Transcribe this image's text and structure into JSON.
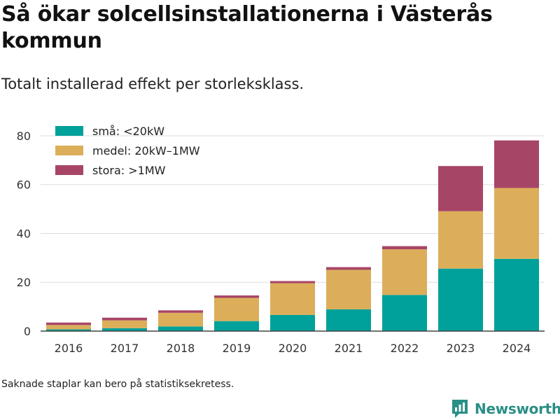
{
  "title": "Så ökar solcellsinstallationerna i Västerås kommun",
  "subtitle": "Totalt installerad effekt per storleksklass.",
  "footnote": "Saknade staplar kan bero på statistiksekretess.",
  "brand": {
    "name": "Newsworthy",
    "color": "#2a8f86"
  },
  "chart_data": {
    "type": "bar",
    "stacked": true,
    "categories": [
      "2016",
      "2017",
      "2018",
      "2019",
      "2020",
      "2021",
      "2022",
      "2023",
      "2024"
    ],
    "series": [
      {
        "name": "små: <20kW",
        "color": "#00a19a",
        "values": [
          0.7,
          1.2,
          1.9,
          4.1,
          6.6,
          8.9,
          14.8,
          25.6,
          29.6
        ]
      },
      {
        "name": "medel: 20kW–1MW",
        "color": "#dcae5a",
        "values": [
          1.8,
          3.2,
          5.6,
          9.5,
          13.0,
          16.2,
          18.7,
          23.5,
          29.0
        ]
      },
      {
        "name": "stora: >1MW",
        "color": "#a74566",
        "values": [
          1.0,
          1.1,
          1.0,
          1.0,
          0.9,
          1.1,
          1.3,
          18.5,
          19.5
        ]
      }
    ],
    "y_ticks": [
      0,
      20,
      40,
      60,
      80
    ],
    "ylim": [
      0,
      84
    ],
    "grid": true,
    "legend": "top-left"
  }
}
